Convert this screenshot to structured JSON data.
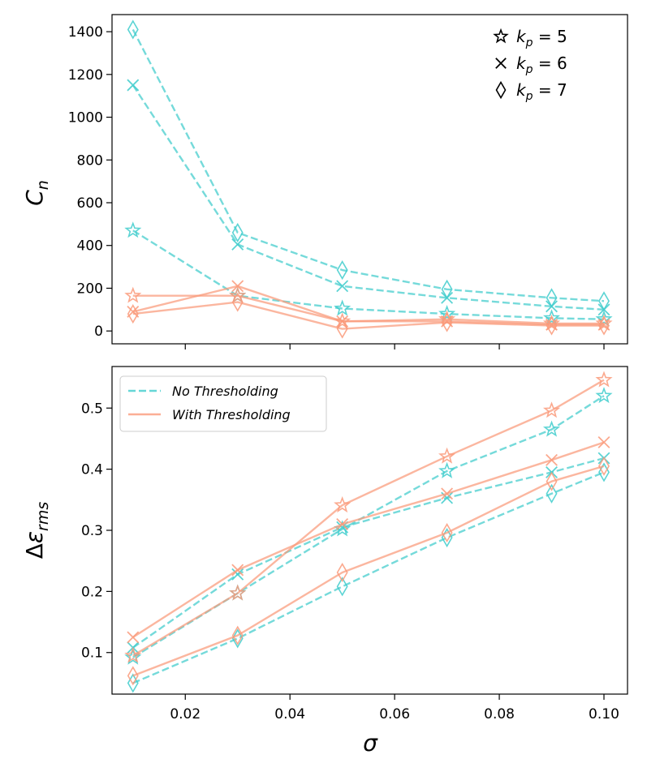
{
  "colors": {
    "no_thresh": "#40cccc",
    "with_thresh": "#fa9a7a"
  },
  "chart_data": [
    {
      "type": "line",
      "panel": "top",
      "ylabel_main": "C",
      "ylabel_sub": "n",
      "xlim": [
        0.006,
        0.1045
      ],
      "ylim": [
        -60,
        1480
      ],
      "xticks": [
        0.02,
        0.04,
        0.06,
        0.08,
        0.1
      ],
      "yticks": [
        0,
        200,
        400,
        600,
        800,
        1000,
        1200,
        1400
      ],
      "ytick_labels": [
        "0",
        "200",
        "400",
        "600",
        "800",
        "1000",
        "1200",
        "1400"
      ],
      "legend": {
        "position": "top-right",
        "entries": [
          {
            "marker": "star",
            "var": "k",
            "sub": "p",
            "rest": " = 5"
          },
          {
            "marker": "x",
            "var": "k",
            "sub": "p",
            "rest": " = 6"
          },
          {
            "marker": "diamond",
            "var": "k",
            "sub": "p",
            "rest": " = 7"
          }
        ]
      },
      "x": [
        0.01,
        0.03,
        0.05,
        0.07,
        0.09,
        0.1
      ],
      "series": [
        {
          "name": "No Thresholding k_p=5",
          "style": "no_thresh",
          "marker": "star",
          "values": [
            470,
            165,
            105,
            80,
            60,
            55
          ]
        },
        {
          "name": "No Thresholding k_p=6",
          "style": "no_thresh",
          "marker": "x",
          "values": [
            1150,
            405,
            210,
            155,
            115,
            100
          ]
        },
        {
          "name": "No Thresholding k_p=7",
          "style": "no_thresh",
          "marker": "diamond",
          "values": [
            1410,
            460,
            285,
            195,
            155,
            140
          ]
        },
        {
          "name": "With Thresholding k_p=5",
          "style": "with_thresh",
          "marker": "star",
          "values": [
            165,
            165,
            45,
            55,
            35,
            35
          ]
        },
        {
          "name": "With Thresholding k_p=6",
          "style": "with_thresh",
          "marker": "x",
          "values": [
            90,
            210,
            45,
            45,
            30,
            30
          ]
        },
        {
          "name": "With Thresholding k_p=7",
          "style": "with_thresh",
          "marker": "diamond",
          "values": [
            80,
            135,
            10,
            40,
            25,
            25
          ]
        }
      ]
    },
    {
      "type": "line",
      "panel": "bottom",
      "ylabel_pre": "Δ",
      "ylabel_main": "ε",
      "ylabel_sub": "rms",
      "xlabel": "σ",
      "xlim": [
        0.006,
        0.1045
      ],
      "ylim": [
        0.032,
        0.568
      ],
      "xticks": [
        0.02,
        0.04,
        0.06,
        0.08,
        0.1
      ],
      "xtick_labels": [
        "0.02",
        "0.04",
        "0.06",
        "0.08",
        "0.10"
      ],
      "yticks": [
        0.1,
        0.2,
        0.3,
        0.4,
        0.5
      ],
      "ytick_labels": [
        "0.1",
        "0.2",
        "0.3",
        "0.4",
        "0.5"
      ],
      "legend": {
        "position": "top-left",
        "entries": [
          {
            "label": "No Thresholding",
            "style": "no_thresh"
          },
          {
            "label": "With Thresholding",
            "style": "with_thresh"
          }
        ]
      },
      "x": [
        0.01,
        0.03,
        0.05,
        0.07,
        0.09,
        0.1
      ],
      "series": [
        {
          "name": "No Thresholding k_p=5",
          "style": "no_thresh",
          "marker": "star",
          "values": [
            0.092,
            0.197,
            0.302,
            0.397,
            0.465,
            0.52
          ]
        },
        {
          "name": "No Thresholding k_p=6",
          "style": "no_thresh",
          "marker": "x",
          "values": [
            0.108,
            0.228,
            0.305,
            0.353,
            0.395,
            0.418
          ]
        },
        {
          "name": "No Thresholding k_p=7",
          "style": "no_thresh",
          "marker": "diamond",
          "values": [
            0.05,
            0.123,
            0.208,
            0.288,
            0.36,
            0.395
          ]
        },
        {
          "name": "With Thresholding k_p=5",
          "style": "with_thresh",
          "marker": "star",
          "values": [
            0.095,
            0.197,
            0.341,
            0.421,
            0.496,
            0.546
          ]
        },
        {
          "name": "With Thresholding k_p=6",
          "style": "with_thresh",
          "marker": "x",
          "values": [
            0.125,
            0.235,
            0.31,
            0.36,
            0.415,
            0.444
          ]
        },
        {
          "name": "With Thresholding k_p=7",
          "style": "with_thresh",
          "marker": "diamond",
          "values": [
            0.062,
            0.128,
            0.231,
            0.296,
            0.38,
            0.405
          ]
        }
      ]
    }
  ]
}
